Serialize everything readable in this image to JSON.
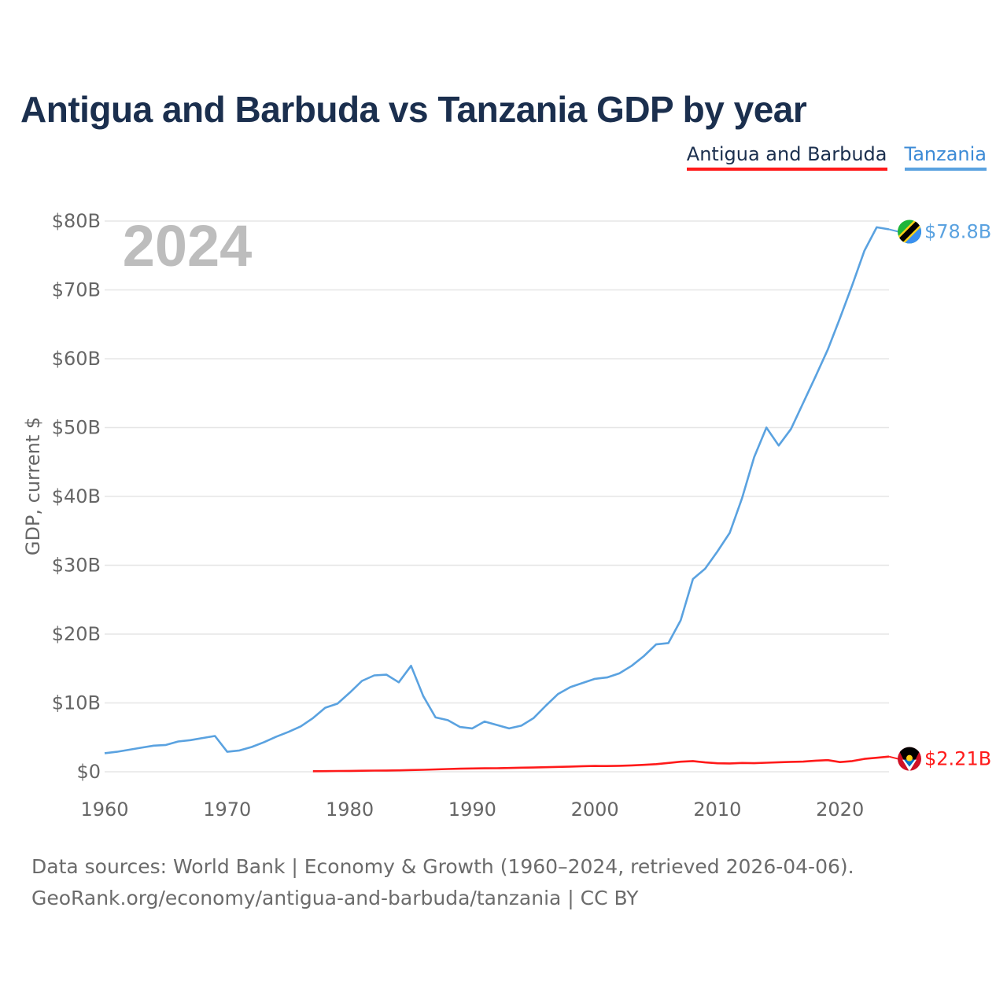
{
  "title": "Antigua and Barbuda vs Tanzania GDP by year",
  "legend": [
    {
      "label": "Antigua and Barbuda",
      "color": "#ff1a1a"
    },
    {
      "label": "Tanzania",
      "color": "#5aa2e0"
    }
  ],
  "year_label": "2024",
  "footer": {
    "line1": "Data sources: World Bank | Economy & Growth (1960–2024, retrieved 2026-04-06).",
    "line2": "GeoRank.org/economy/antigua-and-barbuda/tanzania | CC BY"
  },
  "chart_data": {
    "type": "line",
    "title": "Antigua and Barbuda vs Tanzania GDP by year",
    "xlabel": "",
    "ylabel": "GDP, current $",
    "xlim": [
      1960,
      2024
    ],
    "ylim": [
      0,
      80
    ],
    "unit": "billion USD",
    "x_ticks": [
      {
        "value": 1960,
        "label": "1960"
      },
      {
        "value": 1970,
        "label": "1970"
      },
      {
        "value": 1980,
        "label": "1980"
      },
      {
        "value": 1990,
        "label": "1990"
      },
      {
        "value": 2000,
        "label": "2000"
      },
      {
        "value": 2010,
        "label": "2010"
      },
      {
        "value": 2020,
        "label": "2020"
      }
    ],
    "y_ticks": [
      {
        "value": 0,
        "label": "$0"
      },
      {
        "value": 10,
        "label": "$10B"
      },
      {
        "value": 20,
        "label": "$20B"
      },
      {
        "value": 30,
        "label": "$30B"
      },
      {
        "value": 40,
        "label": "$40B"
      },
      {
        "value": 50,
        "label": "$50B"
      },
      {
        "value": 60,
        "label": "$60B"
      },
      {
        "value": 70,
        "label": "$70B"
      },
      {
        "value": 80,
        "label": "$80B"
      }
    ],
    "grid": true,
    "series": [
      {
        "name": "Tanzania",
        "color": "#5aa2e0",
        "end_label": "$78.8B",
        "flag": "tanzania-flag",
        "x": [
          1960,
          1961,
          1962,
          1963,
          1964,
          1965,
          1966,
          1967,
          1968,
          1969,
          1970,
          1971,
          1972,
          1973,
          1974,
          1975,
          1976,
          1977,
          1978,
          1979,
          1980,
          1981,
          1982,
          1983,
          1984,
          1985,
          1986,
          1987,
          1988,
          1989,
          1990,
          1991,
          1992,
          1993,
          1994,
          1995,
          1996,
          1997,
          1998,
          1999,
          2000,
          2001,
          2002,
          2003,
          2004,
          2005,
          2006,
          2007,
          2008,
          2009,
          2010,
          2011,
          2012,
          2013,
          2014,
          2015,
          2016,
          2017,
          2018,
          2019,
          2020,
          2021,
          2022,
          2023,
          2024
        ],
        "values": [
          2.7,
          2.9,
          3.2,
          3.5,
          3.8,
          3.9,
          4.4,
          4.6,
          4.9,
          5.2,
          2.9,
          3.1,
          3.6,
          4.3,
          5.1,
          5.8,
          6.6,
          7.8,
          9.3,
          9.9,
          11.5,
          13.2,
          14.0,
          14.1,
          13.0,
          15.4,
          11.0,
          7.9,
          7.5,
          6.5,
          6.3,
          7.3,
          6.8,
          6.3,
          6.7,
          7.8,
          9.6,
          11.3,
          12.3,
          12.9,
          13.5,
          13.7,
          14.3,
          15.4,
          16.8,
          18.5,
          18.7,
          22.0,
          28.0,
          29.5,
          32.0,
          34.7,
          39.7,
          45.7,
          50.0,
          47.4,
          49.8,
          53.6,
          57.4,
          61.3,
          65.9,
          70.7,
          75.7,
          79.1,
          78.8
        ]
      },
      {
        "name": "Antigua and Barbuda",
        "color": "#ff1a1a",
        "end_label": "$2.21B",
        "flag": "antigua-flag",
        "x": [
          1977,
          1978,
          1979,
          1980,
          1981,
          1982,
          1983,
          1984,
          1985,
          1986,
          1987,
          1988,
          1989,
          1990,
          1991,
          1992,
          1993,
          1994,
          1995,
          1996,
          1997,
          1998,
          1999,
          2000,
          2001,
          2002,
          2003,
          2004,
          2005,
          2006,
          2007,
          2008,
          2009,
          2010,
          2011,
          2012,
          2013,
          2014,
          2015,
          2016,
          2017,
          2018,
          2019,
          2020,
          2021,
          2022,
          2023,
          2024
        ],
        "values": [
          0.08,
          0.09,
          0.11,
          0.13,
          0.15,
          0.17,
          0.18,
          0.21,
          0.25,
          0.29,
          0.34,
          0.4,
          0.45,
          0.48,
          0.5,
          0.52,
          0.55,
          0.6,
          0.62,
          0.66,
          0.71,
          0.76,
          0.81,
          0.85,
          0.83,
          0.87,
          0.93,
          1.01,
          1.11,
          1.28,
          1.46,
          1.56,
          1.36,
          1.23,
          1.21,
          1.28,
          1.25,
          1.32,
          1.38,
          1.44,
          1.47,
          1.61,
          1.69,
          1.41,
          1.56,
          1.87,
          2.03,
          2.21
        ]
      }
    ]
  }
}
